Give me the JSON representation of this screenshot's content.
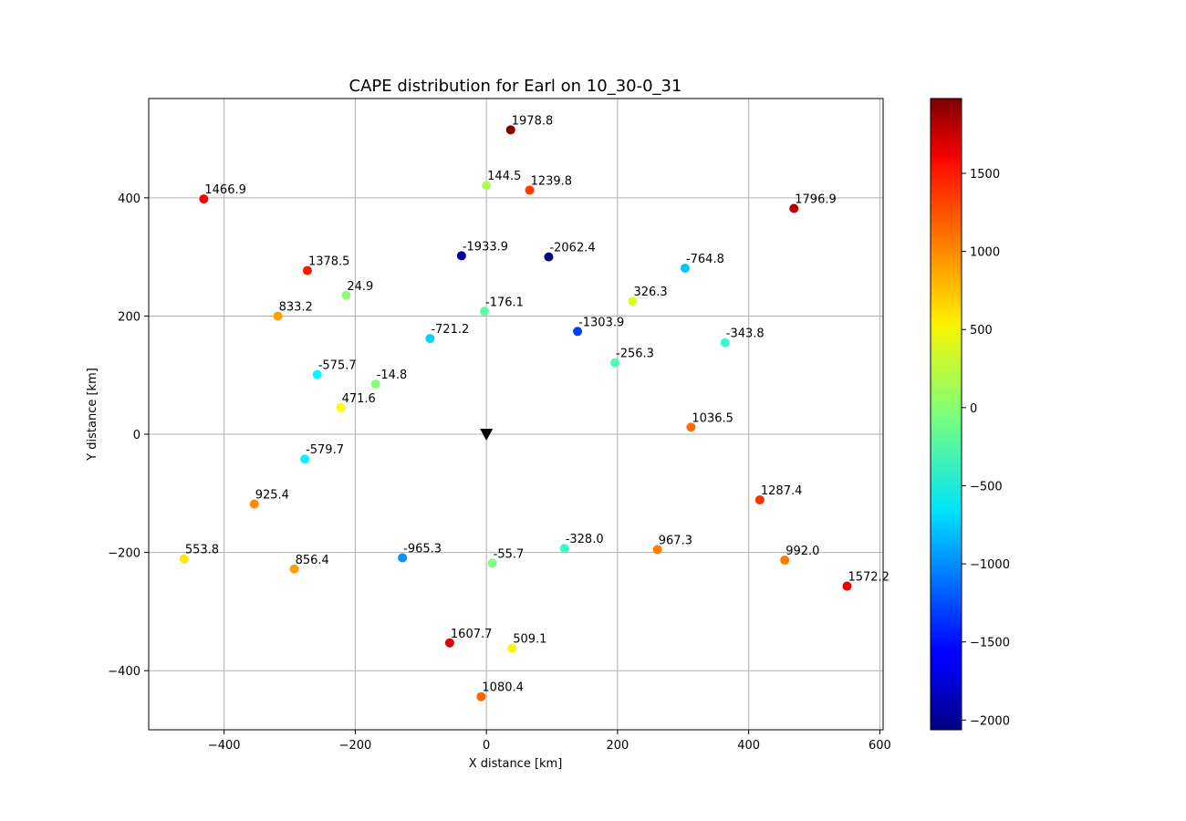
{
  "chart_data": {
    "type": "scatter",
    "title": "CAPE distribution for Earl on 10_30-0_31",
    "xlabel": "X distance [km]",
    "ylabel": "Y distance [km]",
    "xlim": [
      -515,
      605
    ],
    "ylim": [
      -500,
      568
    ],
    "xticks": [
      -400,
      -200,
      0,
      200,
      400,
      600
    ],
    "yticks": [
      -400,
      -200,
      0,
      200,
      400
    ],
    "xtick_labels": [
      "−400",
      "−200",
      "0",
      "200",
      "400",
      "600"
    ],
    "ytick_labels": [
      "−400",
      "−200",
      "0",
      "200",
      "400"
    ],
    "grid": true,
    "colormap": "jet",
    "colorbar": {
      "min": -2062.4,
      "max": 1978.8,
      "ticks": [
        -2000,
        -1500,
        -1000,
        -500,
        0,
        500,
        1000,
        1500
      ],
      "tick_labels": [
        "−2000",
        "−1500",
        "−1000",
        "−500",
        "0",
        "500",
        "1000",
        "1500"
      ]
    },
    "marker": {
      "x": 0,
      "y": 0,
      "shape": "down-triangle",
      "color": "#000000"
    },
    "points": [
      {
        "x": 37,
        "y": 515,
        "value": 1978.8,
        "label": "1978.8"
      },
      {
        "x": -431,
        "y": 398,
        "value": 1466.9,
        "label": "1466.9"
      },
      {
        "x": 0,
        "y": 421,
        "value": 144.5,
        "label": "144.5"
      },
      {
        "x": 66,
        "y": 413,
        "value": 1239.8,
        "label": "1239.8"
      },
      {
        "x": 469,
        "y": 382,
        "value": 1796.9,
        "label": "1796.9"
      },
      {
        "x": -38,
        "y": 302,
        "value": -1933.9,
        "label": "-1933.9"
      },
      {
        "x": 95,
        "y": 300,
        "value": -2062.4,
        "label": "-2062.4"
      },
      {
        "x": 303,
        "y": 281,
        "value": -764.8,
        "label": "-764.8"
      },
      {
        "x": -273,
        "y": 277,
        "value": 1378.5,
        "label": "1378.5"
      },
      {
        "x": -214,
        "y": 235,
        "value": 24.9,
        "label": "24.9"
      },
      {
        "x": 223,
        "y": 225,
        "value": 326.3,
        "label": "326.3"
      },
      {
        "x": -318,
        "y": 200,
        "value": 833.2,
        "label": "833.2"
      },
      {
        "x": -3,
        "y": 208,
        "value": -176.1,
        "label": "-176.1"
      },
      {
        "x": 139,
        "y": 174,
        "value": -1303.9,
        "label": "-1303.9"
      },
      {
        "x": -86,
        "y": 162,
        "value": -721.2,
        "label": "-721.2"
      },
      {
        "x": 364,
        "y": 155,
        "value": -343.8,
        "label": "-343.8"
      },
      {
        "x": 196,
        "y": 121,
        "value": -256.3,
        "label": "-256.3"
      },
      {
        "x": -258,
        "y": 101,
        "value": -575.7,
        "label": "-575.7"
      },
      {
        "x": -169,
        "y": 85,
        "value": -14.8,
        "label": "-14.8"
      },
      {
        "x": -222,
        "y": 45,
        "value": 471.6,
        "label": "471.6"
      },
      {
        "x": 312,
        "y": 12,
        "value": 1036.5,
        "label": "1036.5"
      },
      {
        "x": -277,
        "y": -42,
        "value": -579.7,
        "label": "-579.7"
      },
      {
        "x": -354,
        "y": -118,
        "value": 925.4,
        "label": "925.4"
      },
      {
        "x": 417,
        "y": -111,
        "value": 1287.4,
        "label": "1287.4"
      },
      {
        "x": -461,
        "y": -211,
        "value": 553.8,
        "label": "553.8"
      },
      {
        "x": -128,
        "y": -209,
        "value": -965.3,
        "label": "-965.3"
      },
      {
        "x": 119,
        "y": -193,
        "value": -328.0,
        "label": "-328.0"
      },
      {
        "x": 261,
        "y": -195,
        "value": 967.3,
        "label": "967.3"
      },
      {
        "x": 455,
        "y": -213,
        "value": 992.0,
        "label": "992.0"
      },
      {
        "x": -293,
        "y": -228,
        "value": 856.4,
        "label": "856.4"
      },
      {
        "x": 9,
        "y": -218,
        "value": -55.7,
        "label": "-55.7"
      },
      {
        "x": 550,
        "y": -257,
        "value": 1572.2,
        "label": "1572.2"
      },
      {
        "x": -56,
        "y": -353,
        "value": 1607.7,
        "label": "1607.7"
      },
      {
        "x": 39,
        "y": -362,
        "value": 509.1,
        "label": "509.1"
      },
      {
        "x": -8,
        "y": -444,
        "value": 1080.4,
        "label": "1080.4"
      }
    ]
  }
}
